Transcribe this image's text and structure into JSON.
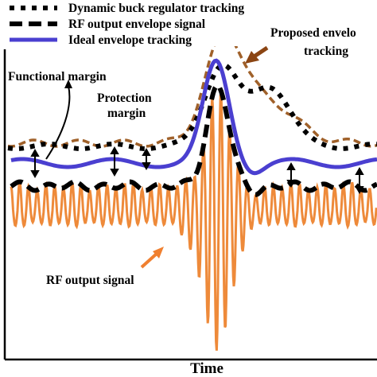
{
  "legend": {
    "items": [
      {
        "label": "Dynamic buck regulator tracking",
        "style": "dotted",
        "color": "#000000"
      },
      {
        "label": "RF output envelope signal",
        "style": "dashed",
        "color": "#000000"
      },
      {
        "label": "Ideal envelope tracking",
        "style": "solid",
        "color": "#4a3fd0"
      }
    ]
  },
  "annotations": {
    "functional_margin": "Functional margin",
    "protection_margin_line1": "Protection",
    "protection_margin_line2": "margin",
    "proposed_line1": "Proposed envelo",
    "proposed_line2": "tracking",
    "rf_output_signal": "RF output signal"
  },
  "axes": {
    "xlabel": "Time"
  },
  "colors": {
    "rf_signal": "#ee8a3a",
    "ideal": "#4a3fd0",
    "proposed": "#a0612a",
    "envelope": "#000000",
    "arrow_brown": "#8b4513",
    "arrow_orange": "#f08030"
  }
}
